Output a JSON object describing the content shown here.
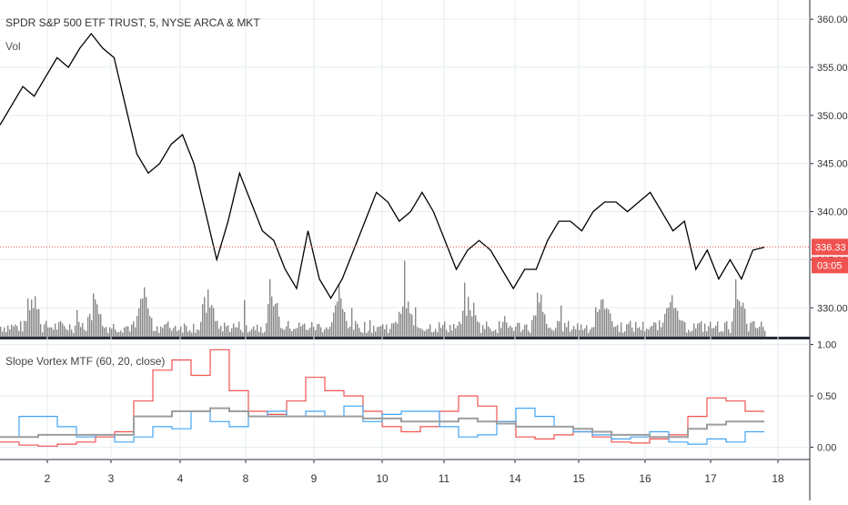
{
  "chart_data": [
    {
      "type": "line",
      "title": "SPDR S&P 500 ETF TRUST, 5, NYSE ARCA & MKT",
      "volume_label": "Vol",
      "ylim": [
        327,
        362
      ],
      "y_ticks": [
        "330.00",
        "335.00",
        "340.00",
        "345.00",
        "350.00",
        "355.00",
        "360.00"
      ],
      "last_price": "336.33",
      "countdown": "03:05",
      "colors": {
        "price": "#000000",
        "volume": "#888888",
        "last_price_badge": "#ef5350",
        "grid": "#e6ecf2"
      },
      "series": [
        {
          "values": [
            349,
            351,
            353,
            352,
            354,
            356,
            355,
            357,
            358.5,
            357,
            356,
            351,
            346,
            344,
            345,
            347,
            348,
            345,
            340,
            335,
            339,
            344,
            341,
            338,
            337,
            334,
            332,
            338,
            333,
            331,
            333,
            336,
            339,
            342,
            341,
            339,
            340,
            342,
            340,
            337,
            334,
            336,
            337,
            336,
            334,
            332,
            334,
            334,
            337,
            339,
            339,
            338,
            340,
            341,
            341,
            340,
            341,
            342,
            340,
            338,
            339,
            334,
            336,
            333,
            335,
            333,
            336,
            336.3
          ]
        }
      ]
    },
    {
      "type": "line",
      "title": "Slope Vortex MTF (60, 20, close)",
      "ylim": [
        -0.12,
        1.05
      ],
      "y_ticks": [
        "0.00",
        "0.50",
        "1.00"
      ],
      "x_ticks": [
        "2",
        "3",
        "4",
        "8",
        "9",
        "10",
        "11",
        "14",
        "15",
        "16",
        "17",
        "18"
      ],
      "series": [
        {
          "color": "#ef5350",
          "values": [
            0.05,
            0.02,
            0.01,
            0.03,
            0.05,
            0.1,
            0.15,
            0.45,
            0.75,
            0.85,
            0.7,
            0.95,
            0.55,
            0.35,
            0.32,
            0.45,
            0.68,
            0.55,
            0.5,
            0.35,
            0.2,
            0.15,
            0.2,
            0.35,
            0.5,
            0.4,
            0.25,
            0.1,
            0.08,
            0.12,
            0.15,
            0.1,
            0.05,
            0.04,
            0.08,
            0.12,
            0.3,
            0.48,
            0.45,
            0.35
          ]
        },
        {
          "color": "#42a5f5",
          "values": [
            0.1,
            0.3,
            0.3,
            0.2,
            0.1,
            0.12,
            0.05,
            0.1,
            0.2,
            0.18,
            0.35,
            0.25,
            0.2,
            0.3,
            0.35,
            0.3,
            0.35,
            0.3,
            0.4,
            0.25,
            0.32,
            0.35,
            0.35,
            0.2,
            0.1,
            0.12,
            0.25,
            0.38,
            0.3,
            0.2,
            0.15,
            0.12,
            0.08,
            0.1,
            0.15,
            0.05,
            0.03,
            0.08,
            0.05,
            0.15
          ]
        },
        {
          "color": "#9e9e9e",
          "values": [
            0.1,
            0.1,
            0.12,
            0.12,
            0.12,
            0.12,
            0.12,
            0.3,
            0.3,
            0.35,
            0.35,
            0.38,
            0.35,
            0.3,
            0.3,
            0.3,
            0.3,
            0.3,
            0.3,
            0.28,
            0.28,
            0.25,
            0.25,
            0.25,
            0.28,
            0.25,
            0.23,
            0.2,
            0.2,
            0.2,
            0.18,
            0.15,
            0.12,
            0.12,
            0.1,
            0.1,
            0.18,
            0.22,
            0.25,
            0.25
          ]
        }
      ]
    }
  ]
}
